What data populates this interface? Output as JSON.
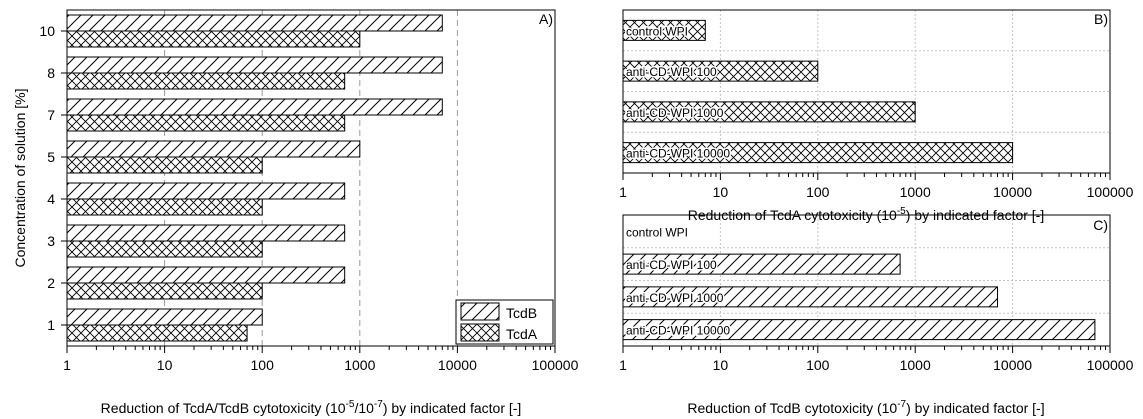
{
  "chart_data": [
    {
      "type": "bar",
      "orientation": "horizontal",
      "panel_label": "A)",
      "categories": [
        "10",
        "8",
        "7",
        "5",
        "4",
        "3",
        "2",
        "1"
      ],
      "series": [
        {
          "name": "TcdB",
          "values": [
            7000,
            7000,
            7000,
            1000,
            700,
            700,
            700,
            100
          ]
        },
        {
          "name": "TcdA",
          "values": [
            1000,
            700,
            700,
            100,
            100,
            100,
            100,
            70
          ]
        }
      ],
      "xscale": "log",
      "xlim": [
        1,
        100000
      ],
      "xticks": [
        "1",
        "10",
        "100",
        "1000",
        "10000",
        "100000"
      ],
      "xlabel_main": "Reduction of TcdA/TcdB cytotoxicity (10",
      "xlabel_exp1": "-5",
      "xlabel_mid": "/10",
      "xlabel_exp2": "-7",
      "xlabel_end": ")  by indicated factor [-]",
      "ylabel": "Concentration of solution [%]",
      "grid": "x-dashed",
      "legend_position": "bottom-right"
    },
    {
      "type": "bar",
      "orientation": "horizontal",
      "panel_label": "B)",
      "categories": [
        "control WPI",
        "anti-CD-WPI 100",
        "anti-CD-WPI 1000",
        "anti-CD-WPI 10000"
      ],
      "values": [
        7,
        100,
        1000,
        10000
      ],
      "pattern": "crosshatch",
      "xscale": "log",
      "xlim": [
        1,
        100000
      ],
      "xticks": [
        "1",
        "10",
        "100",
        "1000",
        "10000",
        "100000"
      ],
      "xlabel_main": "Reduction of TcdA cytotoxicity (10",
      "xlabel_exp": "-5",
      "xlabel_end": ")  by indicated factor [-]",
      "grid": "dotted"
    },
    {
      "type": "bar",
      "orientation": "horizontal",
      "panel_label": "C)",
      "categories": [
        "control WPI",
        "anti-CD-WPI 100",
        "anti-CD-WPI 1000",
        "anti-CD-WPI 10000"
      ],
      "values": [
        1,
        700,
        7000,
        70000
      ],
      "pattern": "diagonal",
      "xscale": "log",
      "xlim": [
        1,
        100000
      ],
      "xticks": [
        "1",
        "10",
        "100",
        "1000",
        "10000",
        "100000"
      ],
      "xlabel_main": "Reduction of TcdB cytotoxicity (10",
      "xlabel_exp": "-7",
      "xlabel_end": ")  by indicated factor [-]",
      "grid": "dotted"
    }
  ]
}
